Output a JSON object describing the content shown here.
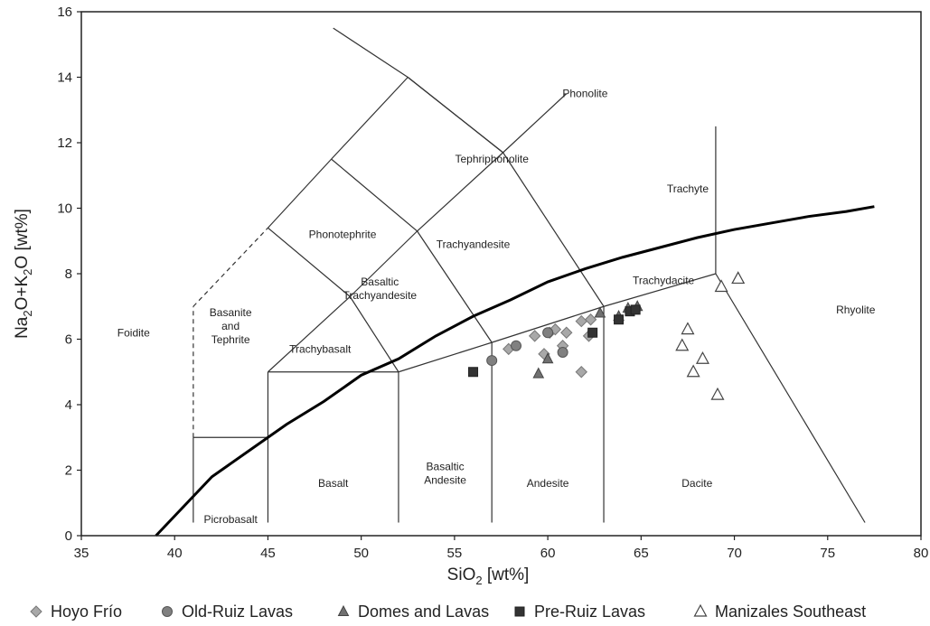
{
  "chart_data": {
    "type": "scatter",
    "title": "",
    "xlabel": "SiO2 [wt%]",
    "ylabel": "Na2O+K2O [wt%]",
    "xlim": [
      35,
      80
    ],
    "ylim": [
      0,
      16
    ],
    "xticks": [
      35,
      40,
      45,
      50,
      55,
      60,
      65,
      70,
      75,
      80
    ],
    "yticks": [
      0,
      2,
      4,
      6,
      8,
      10,
      12,
      14,
      16
    ],
    "xlabel_parts": {
      "main": "SiO",
      "sub": "2",
      "unit": " [wt%]"
    },
    "ylabel_parts": [
      {
        "text": "Na",
        "sub": false
      },
      {
        "text": "2",
        "sub": true
      },
      {
        "text": "O+K",
        "sub": false
      },
      {
        "text": "2",
        "sub": true
      },
      {
        "text": "O [wt%]",
        "sub": false
      }
    ],
    "grid": false,
    "legend_position": "bottom",
    "fields": [
      {
        "name": "Foidite",
        "lines": [
          "Foidite"
        ],
        "x": 37.8,
        "y": 6.2
      },
      {
        "name": "Basanite and Tephrite",
        "lines": [
          "Basanite",
          "and",
          "Tephrite"
        ],
        "x": 43.0,
        "y": 6.4
      },
      {
        "name": "Picrobasalt",
        "lines": [
          "Picrobasalt"
        ],
        "x": 43.0,
        "y": 0.5
      },
      {
        "name": "Basalt",
        "lines": [
          "Basalt"
        ],
        "x": 48.5,
        "y": 1.6
      },
      {
        "name": "Basaltic Andesite",
        "lines": [
          "Basaltic",
          "Andesite"
        ],
        "x": 54.5,
        "y": 1.9
      },
      {
        "name": "Andesite",
        "lines": [
          "Andesite"
        ],
        "x": 60.0,
        "y": 1.6
      },
      {
        "name": "Dacite",
        "lines": [
          "Dacite"
        ],
        "x": 68.0,
        "y": 1.6
      },
      {
        "name": "Rhyolite",
        "lines": [
          "Rhyolite"
        ],
        "x": 76.5,
        "y": 6.9
      },
      {
        "name": "Trachybasalt",
        "lines": [
          "Trachybasalt"
        ],
        "x": 47.8,
        "y": 5.7
      },
      {
        "name": "Basaltic Trachyandesite",
        "lines": [
          "Basaltic",
          "Trachyandesite"
        ],
        "x": 51.0,
        "y": 7.55
      },
      {
        "name": "Trachyandesite",
        "lines": [
          "Trachyandesite"
        ],
        "x": 56.0,
        "y": 8.9
      },
      {
        "name": "Trachydacite",
        "lines": [
          "Trachydacite"
        ],
        "x": 66.2,
        "y": 7.8
      },
      {
        "name": "Phonotephrite",
        "lines": [
          "Phonotephrite"
        ],
        "x": 49.0,
        "y": 9.2
      },
      {
        "name": "Tephriphonolite",
        "lines": [
          "Tephriphonolite"
        ],
        "x": 57.0,
        "y": 11.5
      },
      {
        "name": "Phonolite",
        "lines": [
          "Phonolite"
        ],
        "x": 62.0,
        "y": 13.5
      },
      {
        "name": "Trachyte",
        "lines": [
          "Trachyte"
        ],
        "x": 67.5,
        "y": 10.6
      }
    ],
    "series": [
      {
        "name": "Hoyo Frío",
        "marker": "diamond",
        "color": "#a8a8a8",
        "points": [
          [
            57.9,
            5.7
          ],
          [
            59.3,
            6.1
          ],
          [
            59.8,
            5.55
          ],
          [
            60.1,
            6.2
          ],
          [
            60.4,
            6.3
          ],
          [
            61.0,
            6.2
          ],
          [
            60.8,
            5.8
          ],
          [
            61.8,
            6.55
          ],
          [
            62.3,
            6.6
          ],
          [
            62.2,
            6.1
          ],
          [
            61.8,
            5.0
          ]
        ]
      },
      {
        "name": "Old-Ruiz Lavas",
        "marker": "circle",
        "color": "#808080",
        "points": [
          [
            57.0,
            5.35
          ],
          [
            58.3,
            5.8
          ],
          [
            60.0,
            6.2
          ],
          [
            60.8,
            5.6
          ]
        ]
      },
      {
        "name": "Domes and Lavas",
        "marker": "triangle",
        "color": "#707070",
        "points": [
          [
            59.5,
            4.95
          ],
          [
            60.0,
            5.4
          ],
          [
            62.8,
            6.8
          ],
          [
            63.8,
            6.7
          ],
          [
            64.3,
            6.95
          ],
          [
            64.8,
            7.0
          ]
        ]
      },
      {
        "name": "Pre-Ruiz Lavas",
        "marker": "square",
        "color": "#333333",
        "points": [
          [
            56.0,
            5.0
          ],
          [
            62.4,
            6.2
          ],
          [
            63.8,
            6.6
          ],
          [
            64.4,
            6.85
          ],
          [
            64.7,
            6.9
          ]
        ]
      },
      {
        "name": "Manizales Southeast",
        "marker": "open-triangle",
        "color": "#555555",
        "points": [
          [
            69.3,
            7.6
          ],
          [
            70.2,
            7.85
          ],
          [
            67.5,
            6.3
          ],
          [
            67.2,
            5.8
          ],
          [
            68.3,
            5.4
          ],
          [
            67.8,
            5.0
          ],
          [
            69.1,
            4.3
          ]
        ]
      }
    ]
  },
  "legend": [
    {
      "label": "Hoyo Frío",
      "marker": "diamond"
    },
    {
      "label": "Old-Ruiz Lavas",
      "marker": "circle"
    },
    {
      "label": "Domes and Lavas",
      "marker": "triangle"
    },
    {
      "label": "Pre-Ruiz Lavas",
      "marker": "square"
    },
    {
      "label": "Manizales Southeast",
      "marker": "open-triangle"
    }
  ]
}
